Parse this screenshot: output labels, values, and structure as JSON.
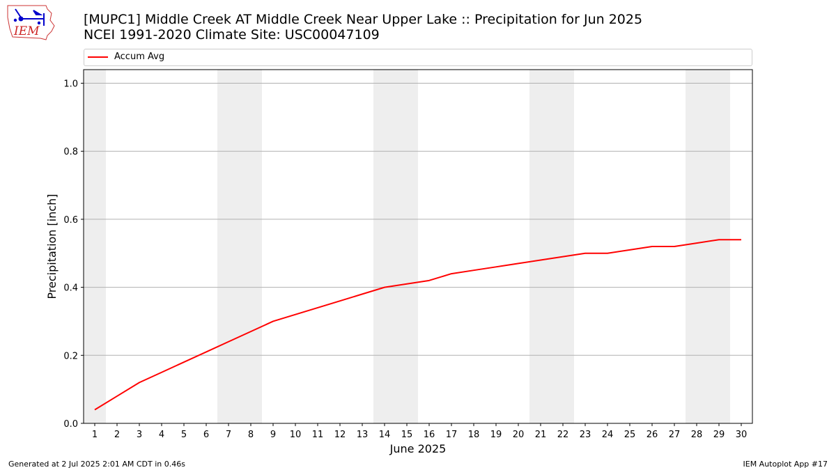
{
  "header": {
    "logo_text": "IEM",
    "title_line1": "[MUPC1] Middle Creek  AT Middle Creek Near Upper Lake :: Precipitation for Jun 2025",
    "title_line2": "NCEI 1991-2020 Climate Site: USC00047109"
  },
  "footer": {
    "generated": "Generated at 2 Jul 2025 2:01 AM CDT in 0.46s",
    "app": "IEM Autoplot App #17"
  },
  "colors": {
    "line": "#ff0000",
    "weekend_band": "#eeeeee",
    "grid": "#b0b0b0",
    "logo": "#0000cc",
    "logo_text": "#cc2222"
  },
  "chart_data": {
    "type": "line",
    "title": "[MUPC1] Middle Creek  AT Middle Creek Near Upper Lake :: Precipitation for Jun 2025",
    "subtitle": "NCEI 1991-2020 Climate Site: USC00047109",
    "xlabel": "June 2025",
    "ylabel": "Precipitation [inch]",
    "x": [
      1,
      2,
      3,
      4,
      5,
      6,
      7,
      8,
      9,
      10,
      11,
      12,
      13,
      14,
      15,
      16,
      17,
      18,
      19,
      20,
      21,
      22,
      23,
      24,
      25,
      26,
      27,
      28,
      29,
      30
    ],
    "xlim": [
      0.5,
      30.5
    ],
    "ylim": [
      0.0,
      1.04
    ],
    "yticks": [
      0.0,
      0.2,
      0.4,
      0.6,
      0.8,
      1.0
    ],
    "ytick_labels": [
      "0.0",
      "0.2",
      "0.4",
      "0.6",
      "0.8",
      "1.0"
    ],
    "grid": "horizontal",
    "legend": "top",
    "weekend_bands": [
      [
        0.5,
        1.5
      ],
      [
        6.5,
        8.5
      ],
      [
        13.5,
        15.5
      ],
      [
        20.5,
        22.5
      ],
      [
        27.5,
        29.5
      ]
    ],
    "series": [
      {
        "name": "Accum Avg",
        "values": [
          0.04,
          0.08,
          0.12,
          0.15,
          0.18,
          0.21,
          0.24,
          0.27,
          0.3,
          0.32,
          0.34,
          0.36,
          0.38,
          0.4,
          0.41,
          0.42,
          0.44,
          0.45,
          0.46,
          0.47,
          0.48,
          0.49,
          0.5,
          0.5,
          0.51,
          0.52,
          0.52,
          0.53,
          0.54,
          0.54
        ]
      }
    ]
  }
}
